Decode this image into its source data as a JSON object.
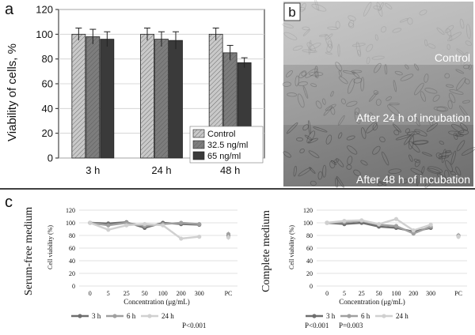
{
  "panels": {
    "a": "a",
    "b": "b",
    "c": "c"
  },
  "chart_data": [
    {
      "id": "a",
      "type": "bar",
      "title": "",
      "xlabel": "",
      "ylabel": "Viability of cells, %",
      "ylim": [
        0,
        120
      ],
      "yticks": [
        0,
        20,
        40,
        60,
        80,
        100,
        120
      ],
      "categories": [
        "3 h",
        "24 h",
        "48 h"
      ],
      "series": [
        {
          "name": "Control",
          "values": [
            100,
            100,
            100
          ],
          "errors": [
            5,
            5,
            5
          ],
          "fill": "#c9c9c9",
          "hatch": true
        },
        {
          "name": "32.5 ng/ml",
          "values": [
            98,
            96,
            85
          ],
          "errors": [
            6,
            6,
            6
          ],
          "fill": "#7d7d7d",
          "hatch": true
        },
        {
          "name": "65 ng/ml",
          "values": [
            96,
            95,
            77
          ],
          "errors": [
            6,
            7,
            4
          ],
          "fill": "#3a3a3a",
          "hatch": false
        }
      ],
      "legend": "bottom-right"
    },
    {
      "id": "c-left",
      "type": "line",
      "side_title": "Serum-free medium",
      "ylabel": "Cell viability (%)",
      "xlabel": "Concentration (μg/mL)",
      "ylim": [
        0,
        120
      ],
      "yticks": [
        0,
        20,
        40,
        60,
        80,
        100,
        120
      ],
      "categories": [
        "0",
        "5",
        "25",
        "50",
        "100",
        "200",
        "300"
      ],
      "extra_category": "PC",
      "series": [
        {
          "name": "3 h",
          "color": "#6e6e6e",
          "values": [
            100,
            99,
            101,
            92,
            100,
            98,
            97
          ],
          "pc": 79
        },
        {
          "name": "6 h",
          "color": "#a0a0a0",
          "values": [
            100,
            96,
            100,
            95,
            98,
            100,
            98
          ],
          "pc": 82
        },
        {
          "name": "24 h",
          "color": "#d0d0d0",
          "values": [
            100,
            89,
            96,
            98,
            96,
            75,
            78
          ],
          "pc": 77
        }
      ],
      "note": "P<0.001"
    },
    {
      "id": "c-right",
      "type": "line",
      "side_title": "Complete medium",
      "ylabel": "Cell viability (%)",
      "xlabel": "Concentration (μg/mL)",
      "ylim": [
        0,
        120
      ],
      "yticks": [
        0,
        20,
        40,
        60,
        80,
        100,
        120
      ],
      "categories": [
        "0",
        "5",
        "25",
        "50",
        "100",
        "200",
        "300"
      ],
      "extra_category": "PC",
      "series": [
        {
          "name": "3 h",
          "color": "#6e6e6e",
          "values": [
            100,
            98,
            100,
            94,
            92,
            86,
            92
          ],
          "pc": 79
        },
        {
          "name": "6 h",
          "color": "#a0a0a0",
          "values": [
            100,
            101,
            103,
            97,
            95,
            83,
            94
          ],
          "pc": 80
        },
        {
          "name": "24 h",
          "color": "#d0d0d0",
          "values": [
            100,
            103,
            104,
            98,
            106,
            88,
            97
          ],
          "pc": 78
        }
      ],
      "note_left": "P<0.001",
      "note_right": "P=0.003"
    }
  ],
  "micrographs": {
    "labels": [
      "Control",
      "After 24 h of incubation",
      "After 48 h of incubation"
    ]
  }
}
